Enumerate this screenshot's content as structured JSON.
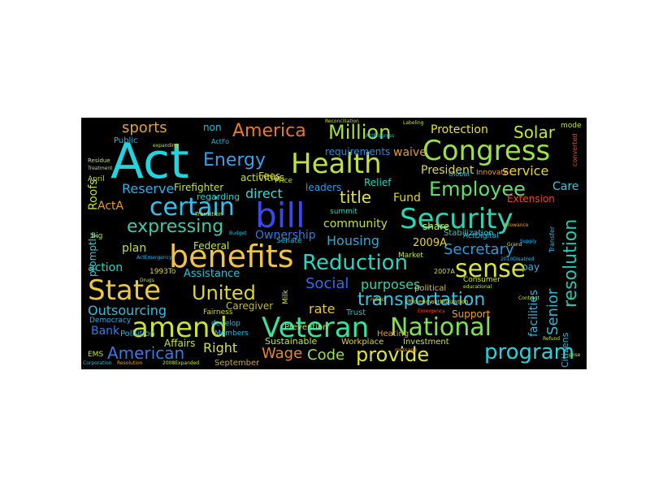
{
  "words": [
    {
      "text": "Act",
      "color": "#22d4dd"
    },
    {
      "text": "Health",
      "color": "#c0e040"
    },
    {
      "text": "Congress",
      "color": "#9be04a"
    },
    {
      "text": "benefits",
      "color": "#f1c24a"
    },
    {
      "text": "Security",
      "color": "#2ed3b3"
    },
    {
      "text": "bill",
      "color": "#3b48f0"
    },
    {
      "text": "Veteran",
      "color": "#37e49c"
    },
    {
      "text": "amend",
      "color": "#c8e23c"
    },
    {
      "text": "State",
      "color": "#ecc83e"
    },
    {
      "text": "National",
      "color": "#7ee24a"
    },
    {
      "text": "Reduction",
      "color": "#28d4c2"
    },
    {
      "text": "sense",
      "color": "#d9e33f"
    },
    {
      "text": "certain",
      "color": "#36c2e8"
    },
    {
      "text": "program",
      "color": "#2fcfd8"
    },
    {
      "text": "United",
      "color": "#d9d43a"
    },
    {
      "text": "provide",
      "color": "#dfe33a"
    },
    {
      "text": "transportation",
      "color": "#36c3e6"
    },
    {
      "text": "Million",
      "color": "#a7e03a"
    },
    {
      "text": "America",
      "color": "#e87a2e"
    },
    {
      "text": "Employee",
      "color": "#5fe06a"
    },
    {
      "text": "Energy",
      "color": "#3aa0e8"
    },
    {
      "text": "resolution",
      "color": "#27c7b4"
    },
    {
      "text": "expressing",
      "color": "#40c8a8"
    },
    {
      "text": "Social",
      "color": "#2f6ce8"
    },
    {
      "text": "American",
      "color": "#3a78e0"
    },
    {
      "text": "Secretary",
      "color": "#2f9bd8"
    },
    {
      "text": "Solar",
      "color": "#c4e43a"
    },
    {
      "text": "Housing",
      "color": "#2fa8d0"
    },
    {
      "text": "title",
      "color": "#e3e23a"
    },
    {
      "text": "Senior",
      "color": "#34b8d0"
    },
    {
      "text": "Wage",
      "color": "#e08a2a"
    },
    {
      "text": "Code",
      "color": "#9ee04a"
    },
    {
      "text": "sports",
      "color": "#e0a23a"
    },
    {
      "text": "purposes",
      "color": "#38d0a8"
    },
    {
      "text": "Outsourcing",
      "color": "#2fc0e0"
    },
    {
      "text": "rate",
      "color": "#e6c83a"
    },
    {
      "text": "direct",
      "color": "#38d8d0"
    },
    {
      "text": "Reserve",
      "color": "#2fb0e8"
    },
    {
      "text": "service",
      "color": "#e8d23a"
    },
    {
      "text": "Right",
      "color": "#d6e23a"
    },
    {
      "text": "Protection",
      "color": "#e8e03a"
    },
    {
      "text": "President",
      "color": "#d8d84a"
    },
    {
      "text": "action",
      "color": "#2fd0c0"
    },
    {
      "text": "plan",
      "color": "#c0e040"
    },
    {
      "text": "Care",
      "color": "#3ac8d8"
    },
    {
      "text": "Roofs",
      "color": "#bfe03a"
    },
    {
      "text": "Fund",
      "color": "#e0d23a"
    },
    {
      "text": "ActA",
      "color": "#e89a2a"
    },
    {
      "text": "Bank",
      "color": "#3a7ae0"
    },
    {
      "text": "Ownership",
      "color": "#2f7ae0"
    },
    {
      "text": "community",
      "color": "#c0e040"
    },
    {
      "text": "Assistance",
      "color": "#2fbfd8"
    },
    {
      "text": "facilities",
      "color": "#2fb8e0"
    },
    {
      "text": "2009A",
      "color": "#e8d23a"
    },
    {
      "text": "Caregiver",
      "color": "#c8b840"
    },
    {
      "text": "activities",
      "color": "#c8e03a"
    },
    {
      "text": "requirements",
      "color": "#2f88e0"
    },
    {
      "text": "waive",
      "color": "#e09a3a"
    },
    {
      "text": "leaders",
      "color": "#2f9ae0"
    },
    {
      "text": "Federal",
      "color": "#c8e040"
    },
    {
      "text": "Support",
      "color": "#e8a02a"
    },
    {
      "text": "Firefighter",
      "color": "#c0e04a"
    },
    {
      "text": "Fees",
      "color": "#d8d04a"
    },
    {
      "text": "regarding",
      "color": "#2fd0c0"
    },
    {
      "text": "non",
      "color": "#2fb8e0"
    },
    {
      "text": "share",
      "color": "#d8e23a"
    },
    {
      "text": "Relief",
      "color": "#2fd0c0"
    },
    {
      "text": "Extension",
      "color": "#e84a2a"
    },
    {
      "text": "Affairs",
      "color": "#c0e04a"
    },
    {
      "text": "promptly",
      "color": "#2fd0d8"
    },
    {
      "text": "Stabilization",
      "color": "#38c8b8"
    },
    {
      "text": "Citizens",
      "color": "#2fb8d8"
    },
    {
      "text": "Sustainable",
      "color": "#c0e04a"
    },
    {
      "text": "pay",
      "color": "#2fb0e0"
    },
    {
      "text": "Pollution",
      "color": "#2fb0e0"
    },
    {
      "text": "Public",
      "color": "#2fb8e0"
    },
    {
      "text": "Workplace",
      "color": "#d8d03a"
    },
    {
      "text": "Investment",
      "color": "#c0e04a"
    },
    {
      "text": "political",
      "color": "#e0c03a"
    },
    {
      "text": "Heating",
      "color": "#e09a3a"
    },
    {
      "text": "Trust",
      "color": "#2fb8d8"
    },
    {
      "text": "September",
      "color": "#c8a840"
    },
    {
      "text": "Prevention",
      "color": "#c0e04a"
    },
    {
      "text": "Democracy",
      "color": "#2fb0e0"
    },
    {
      "text": "Members",
      "color": "#2fb0e0"
    },
    {
      "text": "develop",
      "color": "#2fb8e0"
    },
    {
      "text": "summit",
      "color": "#2fd0c0"
    },
    {
      "text": "Big",
      "color": "#c0e040"
    },
    {
      "text": "Senate",
      "color": "#2fb8e0"
    },
    {
      "text": "Market",
      "color": "#c0e04a"
    },
    {
      "text": "1993To",
      "color": "#e0d03a"
    },
    {
      "text": "Price",
      "color": "#c8d040"
    },
    {
      "text": "Milk",
      "color": "#c0e04a"
    },
    {
      "text": "Innovate",
      "color": "#e0a03a"
    },
    {
      "text": "Consumer",
      "color": "#c0e04a"
    },
    {
      "text": "Global",
      "color": "#2fb8e0"
    },
    {
      "text": "April",
      "color": "#c0e04a"
    },
    {
      "text": "EMS",
      "color": "#c0e04a"
    },
    {
      "text": "mode",
      "color": "#c0e04a"
    },
    {
      "text": "Fairness",
      "color": "#d0d040"
    },
    {
      "text": "converted",
      "color": "#e84a2a"
    },
    {
      "text": "Transfer",
      "color": "#2fb8e0"
    },
    {
      "text": "ActFo",
      "color": "#2fb8e0"
    },
    {
      "text": "ActDigital",
      "color": "#2fb8e0"
    },
    {
      "text": "2007A",
      "color": "#c0e04a"
    },
    {
      "text": "Efficiency",
      "color": "#c0e04a"
    },
    {
      "text": "authorization",
      "color": "#c0e04a"
    },
    {
      "text": "Labeling",
      "color": "#c0e04a"
    },
    {
      "text": "Reconciliation",
      "color": "#c0e04a"
    },
    {
      "text": "expanding",
      "color": "#c0e04a"
    },
    {
      "text": "Residue",
      "color": "#c0e04a"
    },
    {
      "text": "Treatment",
      "color": "#c0e04a"
    },
    {
      "text": "ActEmergency",
      "color": "#2fb8e0"
    },
    {
      "text": "Transition",
      "color": "#c0e04a"
    },
    {
      "text": "Budget",
      "color": "#2fb8e0"
    },
    {
      "text": "Drugs",
      "color": "#c0e04a"
    },
    {
      "text": "Corporation",
      "color": "#2fb8e0"
    },
    {
      "text": "Resolution",
      "color": "#e0a03a"
    },
    {
      "text": "2008Expanded",
      "color": "#c0e04a"
    },
    {
      "text": "Emergency",
      "color": "#e84a2a"
    },
    {
      "text": "ActProgress",
      "color": "#2fb8e0"
    },
    {
      "text": "Contract",
      "color": "#c0e04a"
    },
    {
      "text": "educational",
      "color": "#c0e04a"
    },
    {
      "text": "Grand",
      "color": "#c0e04a"
    },
    {
      "text": "Supply",
      "color": "#2fb8e0"
    },
    {
      "text": "2010Disabled",
      "color": "#2fb8e0"
    },
    {
      "text": "Allowance",
      "color": "#e0a03a"
    },
    {
      "text": "Refund",
      "color": "#c0e04a"
    },
    {
      "text": "reflect",
      "color": "#c0e04a"
    },
    {
      "text": "pose",
      "color": "#c0e04a"
    },
    {
      "text": "message",
      "color": "#e0a03a"
    }
  ]
}
